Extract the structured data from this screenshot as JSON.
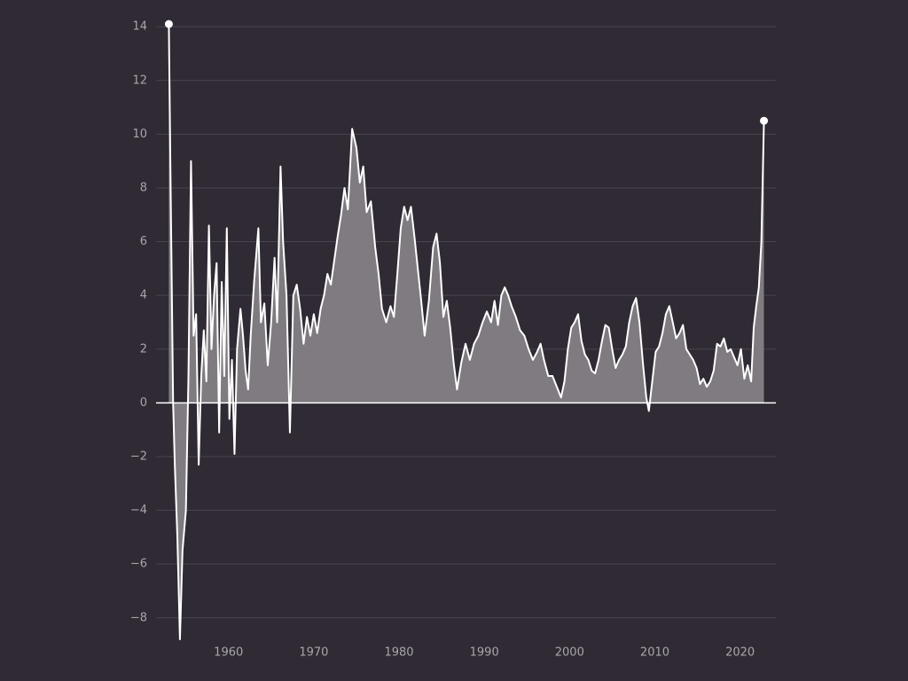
{
  "chart_data": {
    "type": "area",
    "x": [
      1953.0,
      1953.2,
      1953.5,
      1953.7,
      1954.0,
      1954.3,
      1954.6,
      1955.0,
      1955.3,
      1955.6,
      1955.9,
      1956.2,
      1956.5,
      1956.8,
      1957.1,
      1957.4,
      1957.7,
      1958.0,
      1958.3,
      1958.6,
      1958.9,
      1959.2,
      1959.5,
      1959.8,
      1960.1,
      1960.4,
      1960.7,
      1961.0,
      1961.4,
      1961.7,
      1962.0,
      1962.3,
      1962.6,
      1963.0,
      1963.5,
      1963.8,
      1964.2,
      1964.6,
      1965.0,
      1965.4,
      1965.7,
      1966.1,
      1966.4,
      1966.8,
      1967.2,
      1967.6,
      1968.0,
      1968.4,
      1968.8,
      1969.2,
      1969.6,
      1970.0,
      1970.4,
      1970.8,
      1971.2,
      1971.6,
      1972.0,
      1972.4,
      1972.8,
      1973.2,
      1973.6,
      1974.0,
      1974.5,
      1975.0,
      1975.4,
      1975.8,
      1976.2,
      1976.7,
      1977.2,
      1977.6,
      1978.0,
      1978.5,
      1979.0,
      1979.4,
      1979.8,
      1980.2,
      1980.6,
      1981.0,
      1981.4,
      1981.8,
      1982.2,
      1982.6,
      1983.0,
      1983.5,
      1984.0,
      1984.4,
      1984.8,
      1985.2,
      1985.6,
      1986.0,
      1986.4,
      1986.8,
      1987.3,
      1987.8,
      1988.3,
      1988.8,
      1989.3,
      1989.8,
      1990.3,
      1990.8,
      1991.2,
      1991.6,
      1992.0,
      1992.4,
      1992.8,
      1993.2,
      1993.7,
      1994.2,
      1994.7,
      1995.2,
      1995.7,
      1996.2,
      1996.6,
      1997.0,
      1997.5,
      1998.0,
      1998.5,
      1999.0,
      1999.4,
      1999.8,
      2000.2,
      2000.6,
      2001.0,
      2001.4,
      2001.8,
      2002.2,
      2002.6,
      2003.0,
      2003.4,
      2003.8,
      2004.2,
      2004.6,
      2005.0,
      2005.4,
      2005.8,
      2006.2,
      2006.6,
      2007.0,
      2007.4,
      2007.8,
      2008.2,
      2008.6,
      2009.0,
      2009.3,
      2009.7,
      2010.1,
      2010.5,
      2010.9,
      2011.3,
      2011.7,
      2012.1,
      2012.5,
      2012.9,
      2013.3,
      2013.7,
      2014.1,
      2014.5,
      2014.9,
      2015.3,
      2015.7,
      2016.1,
      2016.5,
      2016.9,
      2017.3,
      2017.7,
      2018.1,
      2018.5,
      2018.9,
      2019.3,
      2019.7,
      2020.1,
      2020.5,
      2020.9,
      2021.3,
      2021.6,
      2021.9,
      2022.2,
      2022.5,
      2022.7,
      2022.8
    ],
    "values": [
      14.1,
      8.2,
      0,
      -2.3,
      -5,
      -8.8,
      -5.5,
      -4,
      1,
      9.0,
      2.5,
      3.3,
      -2.3,
      1,
      2.7,
      0.8,
      6.6,
      2,
      4,
      5.2,
      -1.1,
      4.5,
      1,
      6.5,
      -0.6,
      1.6,
      -1.9,
      2,
      3.5,
      2.5,
      1.2,
      0.5,
      2.5,
      4.5,
      6.5,
      3,
      3.7,
      1.4,
      3,
      5.4,
      3,
      8.8,
      6,
      4,
      -1.1,
      4,
      4.4,
      3.5,
      2.2,
      3.2,
      2.5,
      3.3,
      2.6,
      3.5,
      4.0,
      4.8,
      4.4,
      5.3,
      6.2,
      7.0,
      8.0,
      7.2,
      10.2,
      9.5,
      8.2,
      8.8,
      7.1,
      7.5,
      5.8,
      4.8,
      3.5,
      3.0,
      3.6,
      3.2,
      4.8,
      6.5,
      7.3,
      6.8,
      7.3,
      6.2,
      5.0,
      3.8,
      2.5,
      3.8,
      5.8,
      6.3,
      5.2,
      3.2,
      3.8,
      2.8,
      1.5,
      0.5,
      1.5,
      2.2,
      1.6,
      2.2,
      2.5,
      3.0,
      3.4,
      3.0,
      3.8,
      2.9,
      4.0,
      4.3,
      4.0,
      3.6,
      3.2,
      2.7,
      2.5,
      2.0,
      1.6,
      1.9,
      2.2,
      1.6,
      1.0,
      1.0,
      0.6,
      0.2,
      0.8,
      2.0,
      2.8,
      3.0,
      3.3,
      2.3,
      1.8,
      1.6,
      1.2,
      1.1,
      1.6,
      2.3,
      2.9,
      2.8,
      2.0,
      1.3,
      1.6,
      1.8,
      2.1,
      3.0,
      3.6,
      3.9,
      3.0,
      1.5,
      0.2,
      -0.3,
      0.8,
      1.9,
      2.1,
      2.6,
      3.3,
      3.6,
      3.0,
      2.4,
      2.6,
      2.9,
      2.0,
      1.8,
      1.6,
      1.3,
      0.7,
      0.9,
      0.6,
      0.8,
      1.2,
      2.2,
      2.1,
      2.4,
      1.9,
      2.0,
      1.7,
      1.4,
      2.0,
      0.9,
      1.4,
      0.8,
      2.8,
      3.6,
      4.3,
      6.0,
      9.0,
      10.5
    ],
    "color": "#ffffff",
    "fill_color": "#7f7b80",
    "grid_color": "#4a4450",
    "xlim": [
      1951.5,
      2024.2
    ],
    "ylim": [
      -8.8,
      14.5
    ],
    "xticks": [
      1960,
      1970,
      1980,
      1990,
      2000,
      2010,
      2020
    ],
    "yticks": [
      {
        "value": -8,
        "label": "−8"
      },
      {
        "value": -6,
        "label": "−6"
      },
      {
        "value": -4,
        "label": "−4"
      },
      {
        "value": -2,
        "label": "−2"
      },
      0,
      2,
      4,
      6,
      8,
      10,
      12,
      14
    ],
    "grid": true
  }
}
